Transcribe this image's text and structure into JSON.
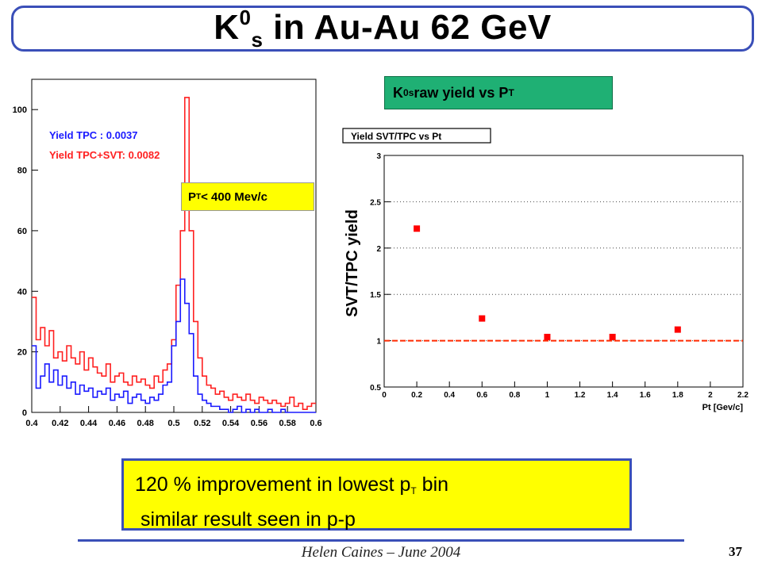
{
  "slide": {
    "title": {
      "main": "K",
      "sup": "0",
      "sub": "s",
      "rest": " in Au-Au 62 GeV"
    },
    "green_label": {
      "main": "K",
      "sup": "0",
      "sub": "s",
      "mid": " raw yield vs P",
      "sub2": "T"
    },
    "pt_label": {
      "p": "P",
      "sub": "T",
      "rest": " < 400 Mev/c"
    },
    "box": {
      "line1_a": "120 % improvement in lowest p",
      "line1_sub": "T",
      "line1_b": " bin",
      "line2": " similar result seen in p-p"
    },
    "footer": "Helen Caines – June 2004",
    "page": "37"
  },
  "chart_data": [
    {
      "type": "line",
      "title": "",
      "xlim": [
        0.4,
        0.6
      ],
      "ylim": [
        0,
        110
      ],
      "x_ticks": [
        "0.4",
        "0.42",
        "0.44",
        "0.46",
        "0.48",
        "0.5",
        "0.52",
        "0.54",
        "0.56",
        "0.58",
        "0.6"
      ],
      "y_ticks": [
        "0",
        "20",
        "40",
        "60",
        "80",
        "100"
      ],
      "legend": [
        "Yield TPC     : 0.0037",
        "Yield TPC+SVT: 0.0082"
      ],
      "colors": {
        "tpc": "#1a1aff",
        "tpc_svt": "#ff2020"
      },
      "series": [
        {
          "name": "Yield TPC+SVT: 0.0082",
          "color": "#ff2020",
          "values": [
            38,
            24,
            28,
            22,
            27,
            18,
            20,
            17,
            22,
            18,
            16,
            20,
            14,
            18,
            15,
            13,
            12,
            16,
            10,
            12,
            13,
            10,
            9,
            12,
            10,
            11,
            9,
            8,
            12,
            10,
            14,
            16,
            24,
            42,
            60,
            104,
            60,
            30,
            18,
            12,
            9,
            8,
            6,
            7,
            5,
            4,
            6,
            5,
            4,
            6,
            4,
            3,
            5,
            4,
            3,
            4,
            3,
            2,
            3,
            5,
            2,
            3,
            1,
            2,
            3
          ]
        },
        {
          "name": "Yield TPC     : 0.0037",
          "color": "#1a1aff",
          "values": [
            22,
            8,
            12,
            16,
            10,
            14,
            9,
            12,
            8,
            10,
            6,
            9,
            7,
            8,
            5,
            7,
            6,
            8,
            4,
            6,
            5,
            7,
            3,
            5,
            6,
            4,
            3,
            5,
            4,
            6,
            9,
            10,
            22,
            30,
            44,
            36,
            26,
            12,
            6,
            4,
            3,
            2,
            2,
            1,
            1,
            0,
            1,
            2,
            0,
            1,
            0,
            1,
            0,
            0,
            1,
            0,
            0,
            1,
            0,
            0,
            0,
            0,
            0,
            0,
            0
          ]
        }
      ]
    },
    {
      "type": "scatter",
      "title": "Yield SVT/TPC vs Pt",
      "xlabel": "Pt [Gev/c]",
      "ylabel": "SVT/TPC yield",
      "xlim": [
        0,
        2.2
      ],
      "ylim": [
        0.5,
        3
      ],
      "x_ticks": [
        "0",
        "0.2",
        "0.4",
        "0.6",
        "0.8",
        "1",
        "1.2",
        "1.4",
        "1.6",
        "1.8",
        "2",
        "2.2"
      ],
      "y_ticks": [
        "0.5",
        "1",
        "1.5",
        "2",
        "2.5",
        "3"
      ],
      "reference_line": 1,
      "grid": true,
      "x": [
        0.2,
        0.6,
        1.0,
        1.4,
        1.8
      ],
      "y": [
        2.21,
        1.24,
        1.04,
        1.04,
        1.12
      ],
      "marker_color": "#ff0000"
    }
  ]
}
